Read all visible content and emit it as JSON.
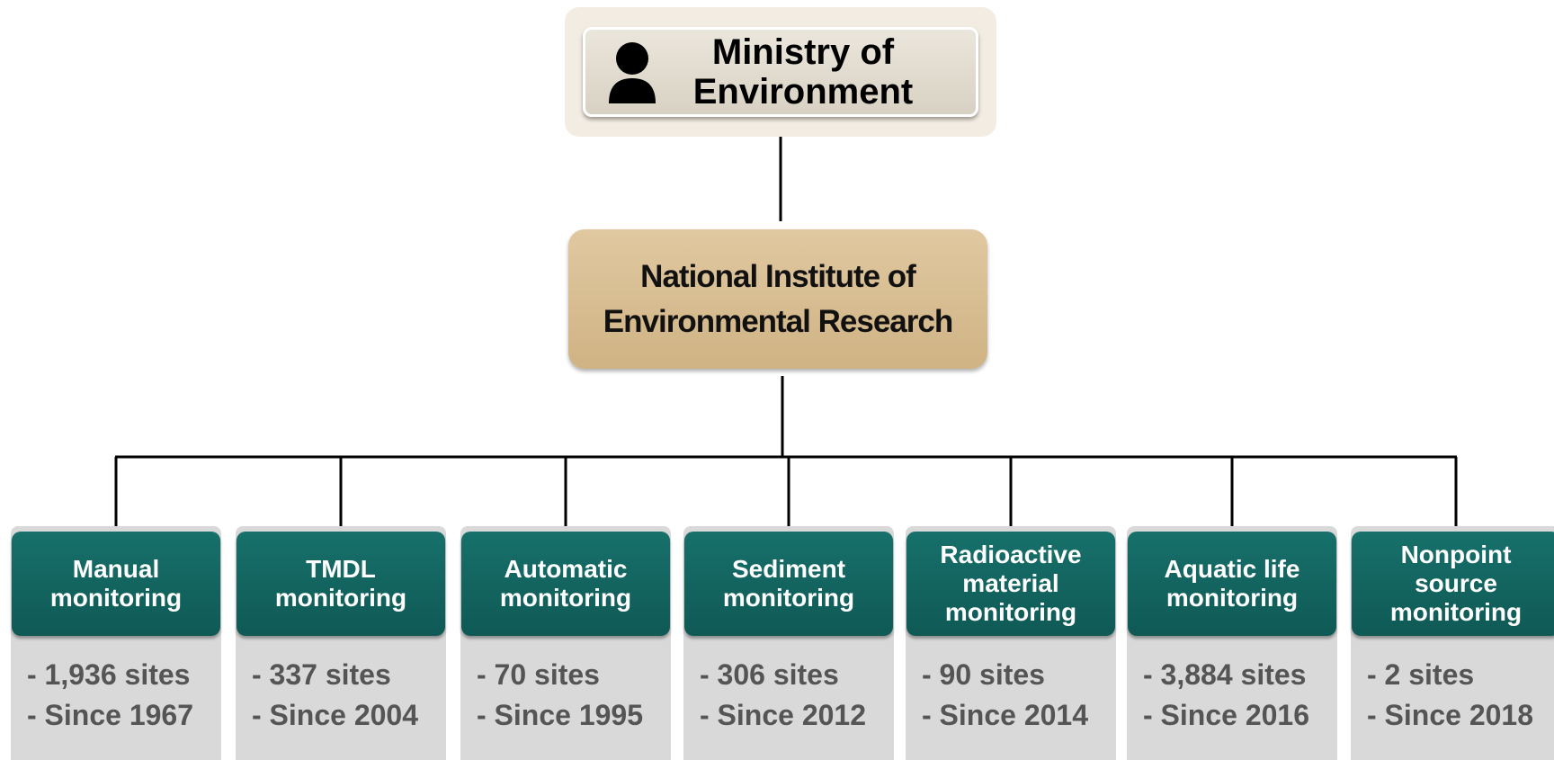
{
  "top": {
    "lines": [
      "Ministry of",
      "Environment"
    ]
  },
  "middle": {
    "lines": [
      "National Institute of",
      "Environmental Research"
    ]
  },
  "children": [
    {
      "title": [
        "Manual",
        "monitoring"
      ],
      "details": [
        "- 1,936 sites",
        "- Since 1967"
      ]
    },
    {
      "title": [
        "TMDL",
        "monitoring"
      ],
      "details": [
        "- 337 sites",
        "- Since 2004"
      ]
    },
    {
      "title": [
        "Automatic",
        "monitoring"
      ],
      "details": [
        "- 70 sites",
        "- Since 1995"
      ]
    },
    {
      "title": [
        "Sediment",
        "monitoring"
      ],
      "details": [
        "- 306 sites",
        "- Since 2012"
      ]
    },
    {
      "title": [
        "Radioactive",
        "material",
        "monitoring"
      ],
      "details": [
        "- 90 sites",
        "- Since 2014"
      ]
    },
    {
      "title": [
        "Aquatic life",
        "monitoring"
      ],
      "details": [
        "- 3,884 sites",
        "- Since 2016"
      ]
    },
    {
      "title": [
        "Nonpoint",
        "source",
        "monitoring"
      ],
      "details": [
        "- 2 sites",
        "- Since 2018"
      ]
    }
  ]
}
